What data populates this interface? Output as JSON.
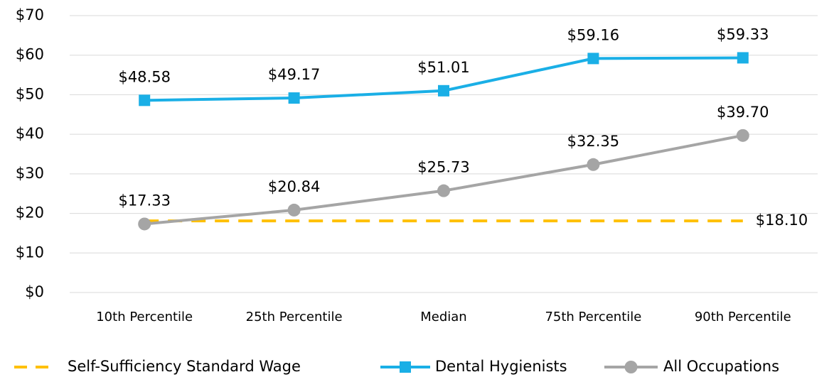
{
  "chart_data": {
    "type": "line",
    "categories": [
      "10th Percentile",
      "25th Percentile",
      "Median",
      "75th Percentile",
      "90th Percentile"
    ],
    "series": [
      {
        "name": "Self-Sufficiency Standard Wage",
        "color": "#FFC000",
        "dash": true,
        "marker": "none",
        "values": [
          18.1,
          18.1,
          18.1,
          18.1,
          18.1
        ],
        "value_labels": [
          null,
          null,
          null,
          null,
          "$18.10"
        ]
      },
      {
        "name": "Dental Hygienists",
        "color": "#1AAFE6",
        "marker": "square",
        "values": [
          48.58,
          49.17,
          51.01,
          59.16,
          59.33
        ],
        "value_labels": [
          "$48.58",
          "$49.17",
          "$51.01",
          "$59.16",
          "$59.33"
        ]
      },
      {
        "name": "All Occupations",
        "color": "#A5A5A5",
        "marker": "circle",
        "values": [
          17.33,
          20.84,
          25.73,
          32.35,
          39.7
        ],
        "value_labels": [
          "$17.33",
          "$20.84",
          "$25.73",
          "$32.35",
          "$39.70"
        ]
      }
    ],
    "ylim": [
      0,
      70
    ],
    "yticks": [
      {
        "value": 0,
        "label": "$0"
      },
      {
        "value": 10,
        "label": "$10"
      },
      {
        "value": 20,
        "label": "$20"
      },
      {
        "value": 30,
        "label": "$30"
      },
      {
        "value": 40,
        "label": "$40"
      },
      {
        "value": 50,
        "label": "$50"
      },
      {
        "value": 60,
        "label": "$60"
      },
      {
        "value": 70,
        "label": "$70"
      }
    ],
    "grid": true,
    "legend": "bottom"
  }
}
